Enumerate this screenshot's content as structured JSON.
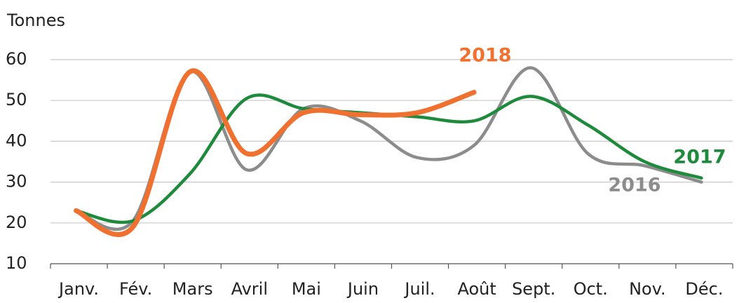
{
  "chart_data": {
    "type": "line",
    "y_label": "Tonnes",
    "categories": [
      "Janv.",
      "Fév.",
      "Mars",
      "Avril",
      "Mai",
      "Juin",
      "Juil.",
      "Août",
      "Sept.",
      "Oct.",
      "Nov.",
      "Déc."
    ],
    "series": [
      {
        "name": "2016",
        "color": "#8c8c8c",
        "values": [
          23,
          20.5,
          57,
          33,
          48,
          45,
          36,
          39,
          58,
          37,
          34,
          30
        ]
      },
      {
        "name": "2017",
        "color": "#1e8a3c",
        "values": [
          23,
          20.5,
          32,
          50.5,
          48,
          47,
          46,
          45,
          51,
          44,
          35,
          31
        ]
      },
      {
        "name": "2018",
        "color": "#f07030",
        "values": [
          23,
          19,
          57,
          37,
          47,
          46.5,
          47,
          52,
          null,
          null,
          null,
          null
        ]
      }
    ],
    "ylim": [
      10,
      60
    ],
    "yticks": [
      10,
      20,
      30,
      40,
      50,
      60
    ],
    "grid": true
  }
}
